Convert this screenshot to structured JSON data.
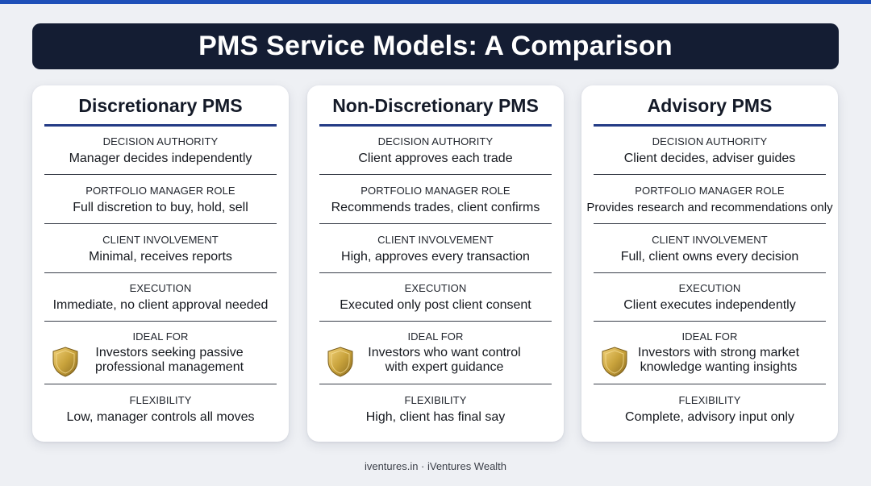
{
  "title": "PMS Service Models: A Comparison",
  "colors": {
    "top_bar": "#1e4fb8",
    "banner": "#141d33",
    "rule": "#243c86",
    "shield_gold": "#c9a33c"
  },
  "cards": [
    {
      "title": "Discretionary PMS",
      "rows": [
        {
          "label": "DECISION AUTHORITY",
          "value": "Manager decides independently"
        },
        {
          "label": "PORTFOLIO MANAGER ROLE",
          "value": "Full discretion to buy, hold, sell"
        },
        {
          "label": "CLIENT INVOLVEMENT",
          "value": "Minimal, receives reports"
        },
        {
          "label": "EXECUTION",
          "value": "Immediate, no client approval needed"
        },
        {
          "label": "IDEAL FOR",
          "value_line1": "Investors seeking passive",
          "value_line2": "professional management",
          "icon": "shield-icon"
        },
        {
          "label": "FLEXIBILITY",
          "value": "Low, manager controls all moves"
        }
      ]
    },
    {
      "title": "Non-Discretionary PMS",
      "rows": [
        {
          "label": "DECISION AUTHORITY",
          "value": "Client approves each trade"
        },
        {
          "label": "PORTFOLIO MANAGER ROLE",
          "value": "Recommends trades, client confirms"
        },
        {
          "label": "CLIENT INVOLVEMENT",
          "value": "High, approves every transaction"
        },
        {
          "label": "EXECUTION",
          "value": "Executed only post client consent"
        },
        {
          "label": "IDEAL FOR",
          "value_line1": "Investors who want control",
          "value_line2": "with expert guidance",
          "icon": "shield-icon"
        },
        {
          "label": "FLEXIBILITY",
          "value": "High, client has final say"
        }
      ]
    },
    {
      "title": "Advisory PMS",
      "rows": [
        {
          "label": "DECISION AUTHORITY",
          "value": "Client decides, adviser guides"
        },
        {
          "label": "PORTFOLIO MANAGER ROLE",
          "value": "Provides research and recommendations only"
        },
        {
          "label": "CLIENT INVOLVEMENT",
          "value": "Full, client owns every decision"
        },
        {
          "label": "EXECUTION",
          "value": "Client executes independently"
        },
        {
          "label": "IDEAL FOR",
          "value_line1": "Investors with strong market",
          "value_line2": "knowledge wanting insights",
          "icon": "shield-icon"
        },
        {
          "label": "FLEXIBILITY",
          "value": "Complete, advisory input only"
        }
      ]
    }
  ],
  "footer": "iventures.in · iVentures Wealth"
}
